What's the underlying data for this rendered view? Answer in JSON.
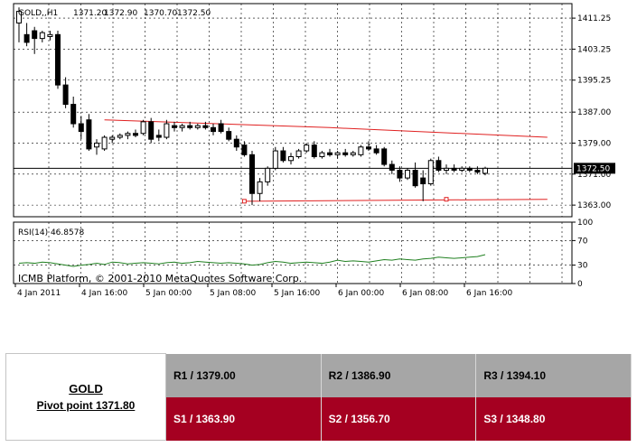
{
  "chart": {
    "symbol_label": "GOLD,,H1",
    "ohlc_values": [
      "1371.20",
      "1372.90",
      "1370.70",
      "1372.50"
    ],
    "current_price_label": "1372.50",
    "price_axis_ticks": [
      "1411.25",
      "1403.25",
      "1395.25",
      "1387.00",
      "1379.00",
      "1371.00",
      "1363.00"
    ],
    "time_axis_labels": [
      "4 Jan 2011",
      "4 Jan 16:00",
      "5 Jan 00:00",
      "5 Jan 08:00",
      "5 Jan 16:00",
      "6 Jan 00:00",
      "6 Jan 08:00",
      "6 Jan 16:00"
    ],
    "rsi_label": "RSI(14) 46.8578",
    "rsi_axis_ticks": [
      "100",
      "70",
      "30",
      "0"
    ],
    "watermark": "ICMB Platform, © 2001-2010 MetaQuotes Software Corp.",
    "colors": {
      "channel_line": "#e02020",
      "rsi_line": "#208020",
      "grid": "#000000"
    }
  },
  "chart_data": {
    "type": "candlestick",
    "symbol": "GOLD",
    "timeframe": "H1",
    "ylim": [
      1360.0,
      1415.0
    ],
    "candles": [
      {
        "o": 1410.0,
        "h": 1414.0,
        "l": 1405.0,
        "c": 1413.0
      },
      {
        "o": 1407.0,
        "h": 1410.0,
        "l": 1404.0,
        "c": 1405.0
      },
      {
        "o": 1408.0,
        "h": 1409.0,
        "l": 1402.0,
        "c": 1406.0
      },
      {
        "o": 1406.0,
        "h": 1408.0,
        "l": 1405.0,
        "c": 1407.5
      },
      {
        "o": 1406.5,
        "h": 1408.0,
        "l": 1405.5,
        "c": 1407.0
      },
      {
        "o": 1407.0,
        "h": 1408.0,
        "l": 1393.0,
        "c": 1394.0
      },
      {
        "o": 1394.0,
        "h": 1396.0,
        "l": 1388.0,
        "c": 1389.0
      },
      {
        "o": 1389.0,
        "h": 1391.0,
        "l": 1383.0,
        "c": 1384.0
      },
      {
        "o": 1384.0,
        "h": 1386.0,
        "l": 1380.0,
        "c": 1382.0
      },
      {
        "o": 1385.0,
        "h": 1386.5,
        "l": 1377.0,
        "c": 1377.5
      },
      {
        "o": 1378.0,
        "h": 1380.0,
        "l": 1376.0,
        "c": 1379.0
      },
      {
        "o": 1377.5,
        "h": 1381.0,
        "l": 1377.0,
        "c": 1380.5
      },
      {
        "o": 1380.0,
        "h": 1381.0,
        "l": 1379.0,
        "c": 1380.5
      },
      {
        "o": 1380.5,
        "h": 1381.5,
        "l": 1380.0,
        "c": 1381.0
      },
      {
        "o": 1381.0,
        "h": 1382.0,
        "l": 1380.0,
        "c": 1381.5
      },
      {
        "o": 1381.5,
        "h": 1382.5,
        "l": 1380.5,
        "c": 1381.0
      },
      {
        "o": 1381.5,
        "h": 1385.0,
        "l": 1381.0,
        "c": 1384.5
      },
      {
        "o": 1384.5,
        "h": 1385.5,
        "l": 1379.0,
        "c": 1380.0
      },
      {
        "o": 1381.0,
        "h": 1382.5,
        "l": 1379.5,
        "c": 1380.5
      },
      {
        "o": 1380.5,
        "h": 1385.0,
        "l": 1380.0,
        "c": 1384.0
      },
      {
        "o": 1383.5,
        "h": 1384.5,
        "l": 1382.0,
        "c": 1383.0
      },
      {
        "o": 1383.0,
        "h": 1384.0,
        "l": 1382.0,
        "c": 1383.5
      },
      {
        "o": 1383.5,
        "h": 1384.5,
        "l": 1382.5,
        "c": 1383.0
      },
      {
        "o": 1383.0,
        "h": 1384.0,
        "l": 1382.5,
        "c": 1383.5
      },
      {
        "o": 1383.5,
        "h": 1384.5,
        "l": 1382.5,
        "c": 1383.0
      },
      {
        "o": 1383.0,
        "h": 1384.0,
        "l": 1381.0,
        "c": 1382.0
      },
      {
        "o": 1384.0,
        "h": 1385.0,
        "l": 1381.5,
        "c": 1382.0
      },
      {
        "o": 1382.0,
        "h": 1383.0,
        "l": 1379.5,
        "c": 1380.0
      },
      {
        "o": 1380.0,
        "h": 1381.0,
        "l": 1377.0,
        "c": 1378.0
      },
      {
        "o": 1378.5,
        "h": 1379.5,
        "l": 1375.5,
        "c": 1376.0
      },
      {
        "o": 1376.0,
        "h": 1377.0,
        "l": 1363.0,
        "c": 1366.0
      },
      {
        "o": 1366.0,
        "h": 1370.0,
        "l": 1364.0,
        "c": 1369.0
      },
      {
        "o": 1369.0,
        "h": 1373.0,
        "l": 1368.0,
        "c": 1372.5
      },
      {
        "o": 1372.5,
        "h": 1378.0,
        "l": 1372.0,
        "c": 1377.0
      },
      {
        "o": 1377.0,
        "h": 1378.0,
        "l": 1374.0,
        "c": 1374.5
      },
      {
        "o": 1374.5,
        "h": 1376.5,
        "l": 1373.5,
        "c": 1375.5
      },
      {
        "o": 1375.5,
        "h": 1377.5,
        "l": 1375.0,
        "c": 1377.0
      },
      {
        "o": 1377.0,
        "h": 1379.0,
        "l": 1376.5,
        "c": 1378.5
      },
      {
        "o": 1378.5,
        "h": 1379.5,
        "l": 1375.0,
        "c": 1375.5
      },
      {
        "o": 1375.5,
        "h": 1377.0,
        "l": 1375.0,
        "c": 1376.5
      },
      {
        "o": 1376.5,
        "h": 1377.5,
        "l": 1375.5,
        "c": 1376.0
      },
      {
        "o": 1376.0,
        "h": 1377.0,
        "l": 1375.0,
        "c": 1376.5
      },
      {
        "o": 1376.5,
        "h": 1377.5,
        "l": 1375.5,
        "c": 1376.0
      },
      {
        "o": 1376.0,
        "h": 1377.0,
        "l": 1375.5,
        "c": 1376.5
      },
      {
        "o": 1376.0,
        "h": 1378.5,
        "l": 1375.5,
        "c": 1378.0
      },
      {
        "o": 1378.0,
        "h": 1379.5,
        "l": 1377.0,
        "c": 1377.5
      },
      {
        "o": 1377.5,
        "h": 1378.5,
        "l": 1376.0,
        "c": 1376.5
      },
      {
        "o": 1377.5,
        "h": 1378.0,
        "l": 1373.0,
        "c": 1373.5
      },
      {
        "o": 1373.5,
        "h": 1374.5,
        "l": 1371.0,
        "c": 1372.0
      },
      {
        "o": 1372.0,
        "h": 1373.0,
        "l": 1369.0,
        "c": 1370.0
      },
      {
        "o": 1370.0,
        "h": 1372.5,
        "l": 1369.5,
        "c": 1372.0
      },
      {
        "o": 1372.0,
        "h": 1374.0,
        "l": 1367.5,
        "c": 1368.0
      },
      {
        "o": 1370.0,
        "h": 1372.0,
        "l": 1364.0,
        "c": 1368.5
      },
      {
        "o": 1368.5,
        "h": 1375.0,
        "l": 1368.0,
        "c": 1374.5
      },
      {
        "o": 1374.5,
        "h": 1375.5,
        "l": 1371.5,
        "c": 1372.0
      },
      {
        "o": 1372.0,
        "h": 1373.5,
        "l": 1371.0,
        "c": 1372.5
      },
      {
        "o": 1372.5,
        "h": 1373.5,
        "l": 1371.5,
        "c": 1372.0
      },
      {
        "o": 1372.0,
        "h": 1373.0,
        "l": 1371.5,
        "c": 1372.5
      },
      {
        "o": 1372.5,
        "h": 1373.0,
        "l": 1371.5,
        "c": 1372.0
      },
      {
        "o": 1372.0,
        "h": 1373.0,
        "l": 1371.0,
        "c": 1371.5
      },
      {
        "o": 1371.2,
        "h": 1372.9,
        "l": 1370.7,
        "c": 1372.5
      }
    ],
    "upper_channel": [
      [
        11,
        1385.0
      ],
      [
        40,
        1383.0
      ],
      [
        68,
        1380.5
      ]
    ],
    "lower_channel": [
      [
        29,
        1364.0
      ],
      [
        68,
        1364.5
      ]
    ],
    "rsi": {
      "period": 14,
      "last": 46.8578,
      "ylim": [
        0,
        100
      ],
      "levels": [
        70,
        30
      ]
    }
  },
  "pivot": {
    "symbol": "GOLD",
    "pivot_text": "Pivot point 1371.80",
    "resistances": [
      "R1 / 1379.00",
      "R2 / 1386.90",
      "R3 / 1394.10"
    ],
    "supports": [
      "S1 / 1363.90",
      "S2 / 1356.70",
      "S3 / 1348.80"
    ],
    "colors": {
      "resistance_bg": "#a6a6a6",
      "support_bg": "#a50021"
    }
  }
}
